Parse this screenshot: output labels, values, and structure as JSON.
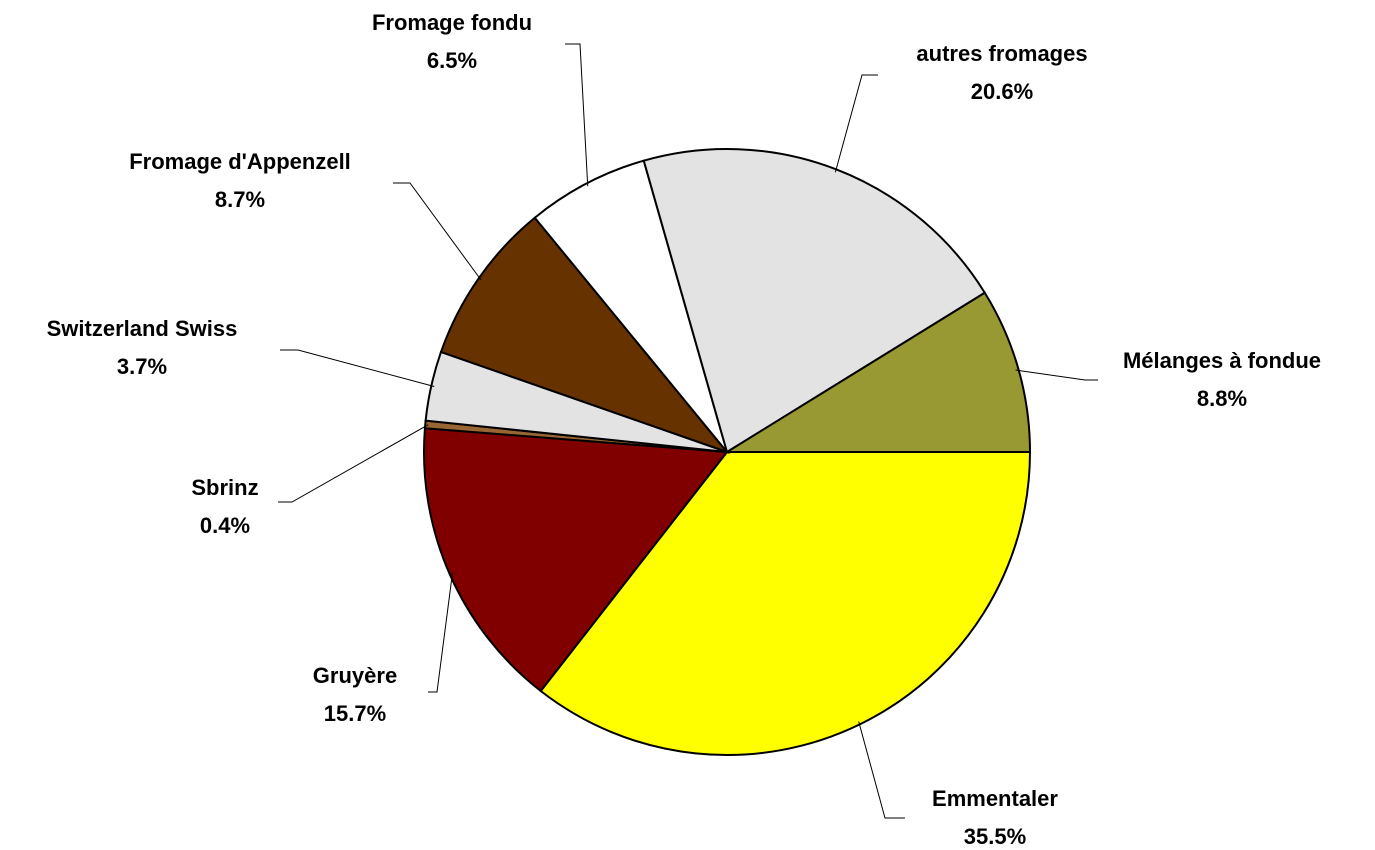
{
  "chart_data": {
    "type": "pie",
    "categories": [
      "Emmentaler",
      "Gruyère",
      "Sbrinz",
      "Switzerland Swiss",
      "Fromage d'Appenzell",
      "Fromage fondu",
      "autres fromages",
      "Mélanges à fondue"
    ],
    "values": [
      35.5,
      15.7,
      0.4,
      3.7,
      8.7,
      6.5,
      20.6,
      8.8
    ],
    "value_labels": [
      "35.5%",
      "15.7%",
      "0.4%",
      "3.7%",
      "8.7%",
      "6.5%",
      "20.6%",
      "8.8%"
    ],
    "colors": [
      "#ffff00",
      "#800000",
      "#996633",
      "#e3e3e3",
      "#663300",
      "#ffffff",
      "#e3e3e3",
      "#999933"
    ]
  }
}
